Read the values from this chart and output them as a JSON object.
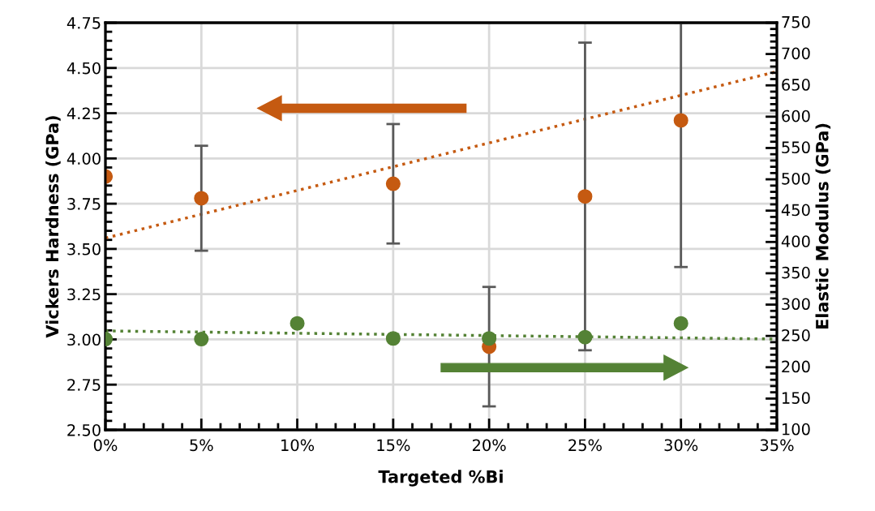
{
  "chart_data": {
    "type": "scatter",
    "xlabel": "Targeted %Bi",
    "ylabel": "Vickers Hardness (GPa)",
    "y2label": "Elastic Modulus (GPa)",
    "x": [
      0,
      5,
      10,
      15,
      20,
      25,
      30
    ],
    "series": [
      {
        "color": "#c55a11",
        "x": [
          0,
          5,
          15,
          20,
          25,
          30
        ],
        "values": [
          3.9,
          3.78,
          3.86,
          2.96,
          3.79,
          4.21
        ],
        "errors": [
          null,
          0.29,
          0.33,
          0.33,
          0.85,
          [
            3.4,
            4.75
          ]
        ],
        "marker": "circle"
      },
      {
        "color": "#548235",
        "axis": "y2",
        "values": [
          245,
          245,
          270,
          246,
          246,
          248,
          270
        ],
        "marker": "circle"
      },
      {
        "type": "line",
        "color": "#c55a11",
        "x": [
          0,
          35
        ],
        "values": [
          3.56,
          4.48
        ],
        "line_style": "dotted",
        "marker": "none"
      },
      {
        "type": "line",
        "color": "#548235",
        "axis": "y2",
        "x": [
          0,
          35
        ],
        "values": [
          258,
          245
        ],
        "line_style": "dotted",
        "marker": "none"
      }
    ],
    "xlim": [
      0,
      35
    ],
    "xticks": [
      {
        "value": 0,
        "label": "0%"
      },
      {
        "value": 5,
        "label": "5%"
      },
      {
        "value": 10,
        "label": "10%"
      },
      {
        "value": 15,
        "label": "15%"
      },
      {
        "value": 20,
        "label": "20%"
      },
      {
        "value": 25,
        "label": "25%"
      },
      {
        "value": 30,
        "label": "30%"
      },
      {
        "value": 35,
        "label": "35%"
      },
      {
        "value": 1,
        "label": null
      },
      {
        "value": 2,
        "label": null
      },
      {
        "value": 3,
        "label": null
      },
      {
        "value": 4,
        "label": null
      },
      {
        "value": 6,
        "label": null
      },
      {
        "value": 7,
        "label": null
      },
      {
        "value": 8,
        "label": null
      },
      {
        "value": 9,
        "label": null
      },
      {
        "value": 11,
        "label": null
      },
      {
        "value": 12,
        "label": null
      },
      {
        "value": 13,
        "label": null
      },
      {
        "value": 14,
        "label": null
      },
      {
        "value": 16,
        "label": null
      },
      {
        "value": 17,
        "label": null
      },
      {
        "value": 18,
        "label": null
      },
      {
        "value": 19,
        "label": null
      },
      {
        "value": 21,
        "label": null
      },
      {
        "value": 22,
        "label": null
      },
      {
        "value": 23,
        "label": null
      },
      {
        "value": 24,
        "label": null
      },
      {
        "value": 26,
        "label": null
      },
      {
        "value": 27,
        "label": null
      },
      {
        "value": 28,
        "label": null
      },
      {
        "value": 29,
        "label": null
      },
      {
        "value": 31,
        "label": null
      },
      {
        "value": 32,
        "label": null
      },
      {
        "value": 33,
        "label": null
      },
      {
        "value": 34,
        "label": null
      }
    ],
    "ylim": [
      2.5,
      4.75
    ],
    "yticks": [
      {
        "value": 2.5,
        "label": "2.50"
      },
      {
        "value": 2.75,
        "label": "2.75"
      },
      {
        "value": 3.0,
        "label": "3.00"
      },
      {
        "value": 3.25,
        "label": "3.25"
      },
      {
        "value": 3.5,
        "label": "3.50"
      },
      {
        "value": 3.75,
        "label": "3.75"
      },
      {
        "value": 4.0,
        "label": "4.00"
      },
      {
        "value": 4.25,
        "label": "4.25"
      },
      {
        "value": 4.5,
        "label": "4.50"
      },
      {
        "value": 4.75,
        "label": "4.75"
      },
      {
        "value": 2.55,
        "label": null
      },
      {
        "value": 2.6,
        "label": null
      },
      {
        "value": 2.65,
        "label": null
      },
      {
        "value": 2.7,
        "label": null
      },
      {
        "value": 2.8,
        "label": null
      },
      {
        "value": 2.85,
        "label": null
      },
      {
        "value": 2.9,
        "label": null
      },
      {
        "value": 2.95,
        "label": null
      },
      {
        "value": 3.05,
        "label": null
      },
      {
        "value": 3.1,
        "label": null
      },
      {
        "value": 3.15,
        "label": null
      },
      {
        "value": 3.2,
        "label": null
      },
      {
        "value": 3.3,
        "label": null
      },
      {
        "value": 3.35,
        "label": null
      },
      {
        "value": 3.4,
        "label": null
      },
      {
        "value": 3.45,
        "label": null
      },
      {
        "value": 3.55,
        "label": null
      },
      {
        "value": 3.6,
        "label": null
      },
      {
        "value": 3.65,
        "label": null
      },
      {
        "value": 3.7,
        "label": null
      },
      {
        "value": 3.8,
        "label": null
      },
      {
        "value": 3.85,
        "label": null
      },
      {
        "value": 3.9,
        "label": null
      },
      {
        "value": 3.95,
        "label": null
      },
      {
        "value": 4.05,
        "label": null
      },
      {
        "value": 4.1,
        "label": null
      },
      {
        "value": 4.15,
        "label": null
      },
      {
        "value": 4.2,
        "label": null
      },
      {
        "value": 4.3,
        "label": null
      },
      {
        "value": 4.35,
        "label": null
      },
      {
        "value": 4.4,
        "label": null
      },
      {
        "value": 4.45,
        "label": null
      },
      {
        "value": 4.55,
        "label": null
      },
      {
        "value": 4.6,
        "label": null
      },
      {
        "value": 4.65,
        "label": null
      },
      {
        "value": 4.7,
        "label": null
      }
    ],
    "y2lim": [
      100,
      750
    ],
    "y2ticks": [
      100,
      150,
      200,
      250,
      300,
      350,
      400,
      450,
      500,
      550,
      600,
      650,
      700,
      750,
      {
        "value": 110,
        "label": null
      },
      {
        "value": 120,
        "label": null
      },
      {
        "value": 130,
        "label": null
      },
      {
        "value": 140,
        "label": null
      },
      {
        "value": 160,
        "label": null
      },
      {
        "value": 170,
        "label": null
      },
      {
        "value": 180,
        "label": null
      },
      {
        "value": 190,
        "label": null
      },
      {
        "value": 210,
        "label": null
      },
      {
        "value": 220,
        "label": null
      },
      {
        "value": 230,
        "label": null
      },
      {
        "value": 240,
        "label": null
      },
      {
        "value": 260,
        "label": null
      },
      {
        "value": 270,
        "label": null
      },
      {
        "value": 280,
        "label": null
      },
      {
        "value": 290,
        "label": null
      },
      {
        "value": 310,
        "label": null
      },
      {
        "value": 320,
        "label": null
      },
      {
        "value": 330,
        "label": null
      },
      {
        "value": 340,
        "label": null
      },
      {
        "value": 360,
        "label": null
      },
      {
        "value": 370,
        "label": null
      },
      {
        "value": 380,
        "label": null
      },
      {
        "value": 390,
        "label": null
      },
      {
        "value": 410,
        "label": null
      },
      {
        "value": 420,
        "label": null
      },
      {
        "value": 430,
        "label": null
      },
      {
        "value": 440,
        "label": null
      },
      {
        "value": 460,
        "label": null
      },
      {
        "value": 470,
        "label": null
      },
      {
        "value": 480,
        "label": null
      },
      {
        "value": 490,
        "label": null
      },
      {
        "value": 510,
        "label": null
      },
      {
        "value": 520,
        "label": null
      },
      {
        "value": 530,
        "label": null
      },
      {
        "value": 540,
        "label": null
      },
      {
        "value": 560,
        "label": null
      },
      {
        "value": 570,
        "label": null
      },
      {
        "value": 580,
        "label": null
      },
      {
        "value": 590,
        "label": null
      },
      {
        "value": 610,
        "label": null
      },
      {
        "value": 620,
        "label": null
      },
      {
        "value": 630,
        "label": null
      },
      {
        "value": 640,
        "label": null
      },
      {
        "value": 660,
        "label": null
      },
      {
        "value": 670,
        "label": null
      },
      {
        "value": 680,
        "label": null
      },
      {
        "value": 690,
        "label": null
      },
      {
        "value": 710,
        "label": null
      },
      {
        "value": 720,
        "label": null
      },
      {
        "value": 730,
        "label": null
      },
      {
        "value": 740,
        "label": null
      }
    ],
    "grid": true
  }
}
